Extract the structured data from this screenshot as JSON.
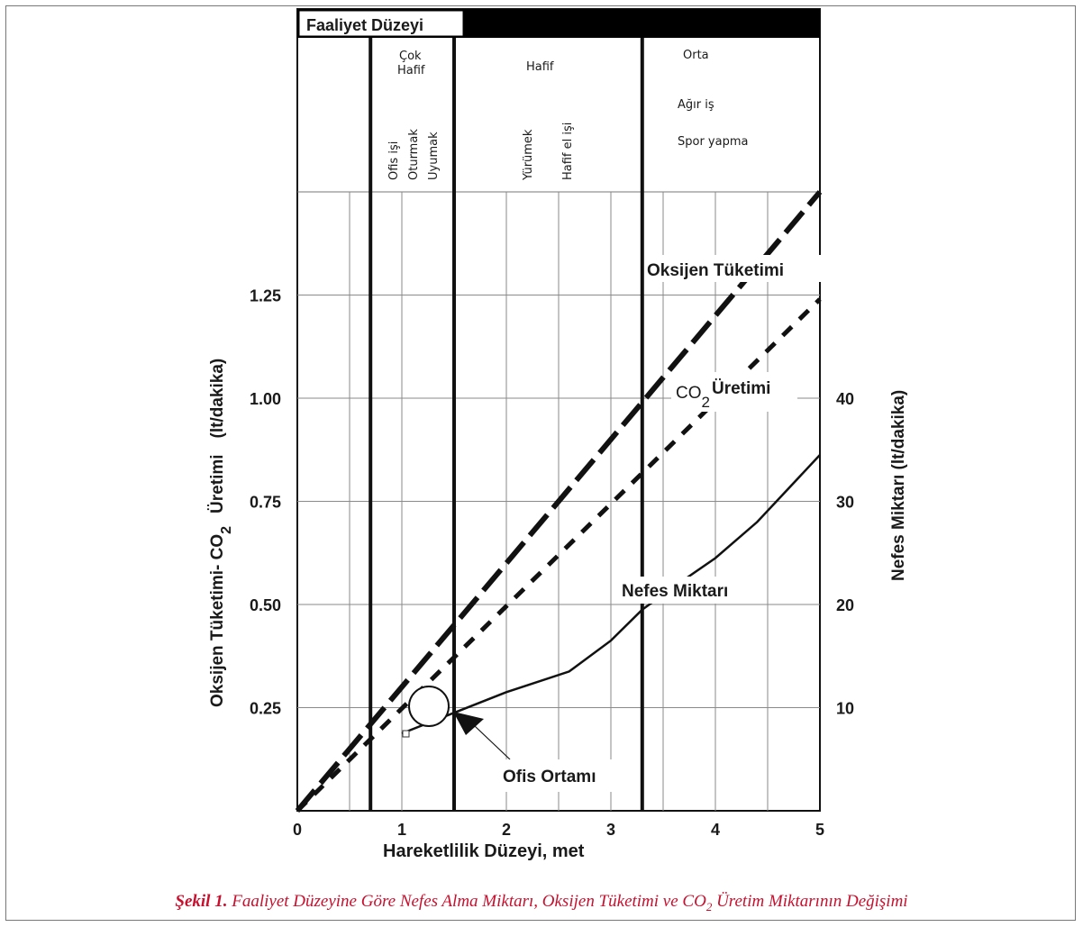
{
  "chart_data": {
    "type": "line",
    "header_title": "Faaliyet Düzeyi",
    "activity_levels": [
      {
        "name": "Çok Hafif",
        "line1": "Çok",
        "line2": "Hafif",
        "activities": [
          "Ofis işi",
          "Oturmak",
          "Uyumak"
        ]
      },
      {
        "name": "Hafif",
        "activities": [
          "Yürümek",
          "Hafif el işi"
        ]
      },
      {
        "name": "Orta",
        "activities": [
          "Ağır iş",
          "Spor yapma"
        ]
      }
    ],
    "level_boundaries_met": [
      0.7,
      1.5,
      3.3
    ],
    "xlabel": "Hareketlilik Düzeyi, met",
    "ylabel_left": "Oksijen Tüketimi- CO₂ Üretimi (lt/dakika)",
    "ylabel_left_parts": {
      "a": "Oksijen Tüketimi- CO",
      "sub": "2",
      "b": "Üretimi",
      "unit": "(lt/dakika)"
    },
    "ylabel_right": "Nefes Miktarı (lt/dakika)",
    "xlim": [
      0,
      5
    ],
    "ylim_left": [
      0,
      1.5
    ],
    "ylim_right": [
      0,
      60
    ],
    "x_ticks": [
      "0",
      "1",
      "2",
      "3",
      "4",
      "5"
    ],
    "y_left_ticks": [
      "0.25",
      "0.50",
      "0.75",
      "1.00",
      "1.25"
    ],
    "y_left_tick_values": [
      0.25,
      0.5,
      0.75,
      1.0,
      1.25
    ],
    "y_right_ticks": [
      "10",
      "20",
      "30",
      "40"
    ],
    "y_right_tick_values": [
      10,
      20,
      30,
      40
    ],
    "series": [
      {
        "name": "Oksijen Tüketimi",
        "style": "dashed",
        "axis": "left",
        "x": [
          0,
          5
        ],
        "y": [
          0,
          1.5
        ]
      },
      {
        "name": "CO₂ Üretimi",
        "name_parts": {
          "a": "CO",
          "sub": "2",
          "b": "Üretimi"
        },
        "style": "dotted",
        "axis": "left",
        "x": [
          0,
          5
        ],
        "y": [
          0,
          1.24
        ]
      },
      {
        "name": "Nefes Miktarı",
        "style": "solid",
        "axis": "right",
        "x": [
          1.0,
          1.5,
          2.0,
          2.6,
          3.0,
          3.3,
          3.6,
          4.0,
          4.4,
          5.0
        ],
        "y": [
          7.5,
          9.5,
          11.5,
          13.5,
          16.5,
          19.5,
          21.7,
          24.5,
          28.0,
          34.5
        ]
      }
    ],
    "annotations": [
      {
        "text": "Ofis Ortamı",
        "x": 1.5,
        "y_right": 10
      }
    ]
  },
  "caption": {
    "label": "Şekil 1.",
    "text_a": "Faaliyet Düzeyine Göre Nefes Alma Miktarı, Oksijen Tüketimi ve CO",
    "sub": "2",
    "text_b": " Üretim Miktarının Değişimi"
  }
}
